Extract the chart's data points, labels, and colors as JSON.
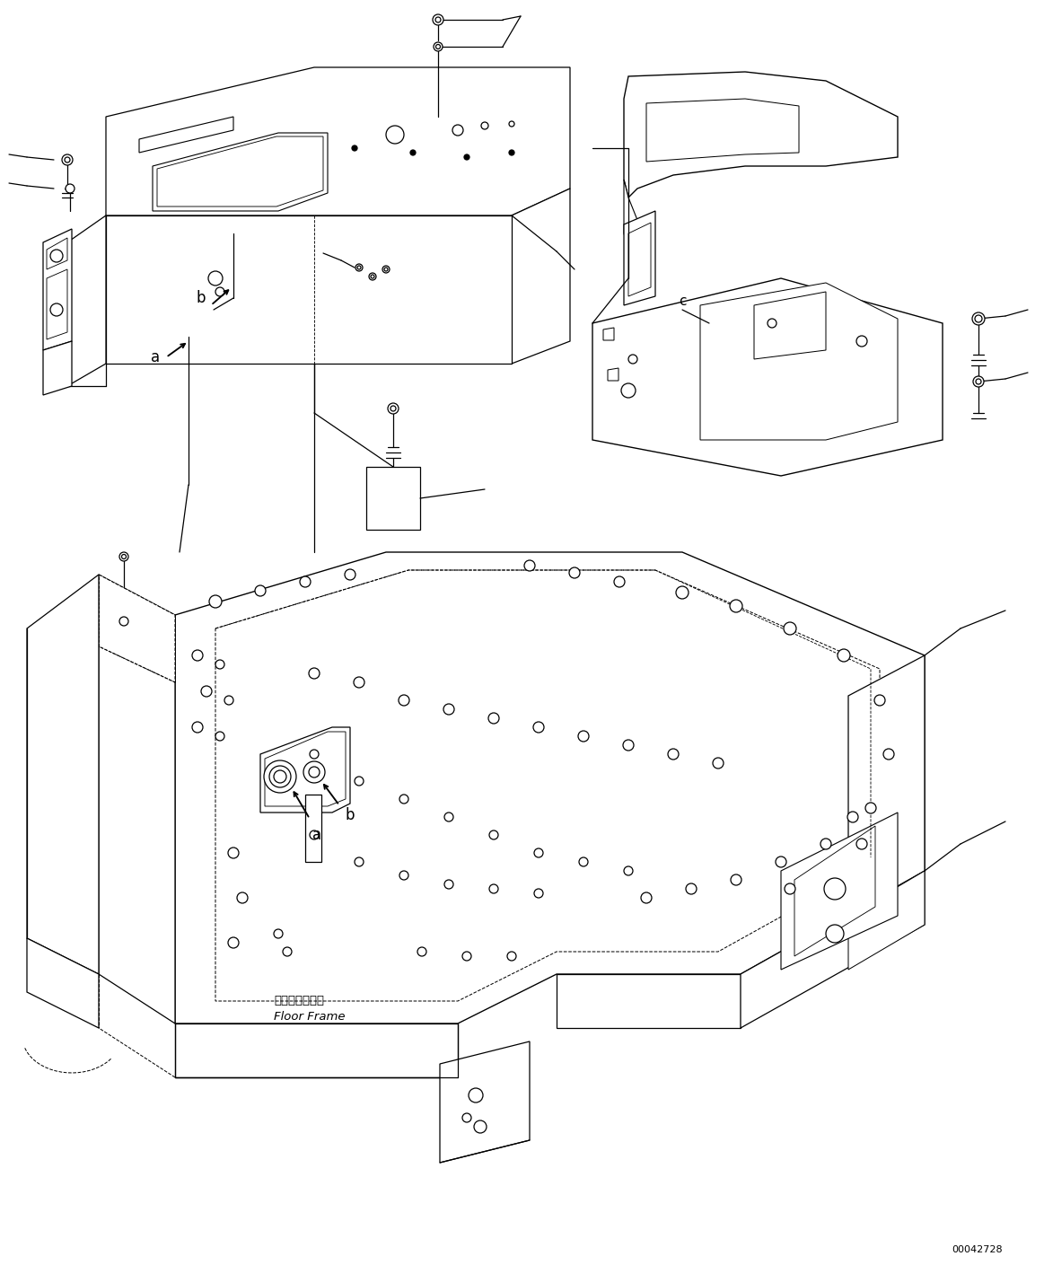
{
  "figure_width": 11.63,
  "figure_height": 14.09,
  "dpi": 100,
  "bg": "#ffffff",
  "lc": "#000000",
  "lw": 0.9,
  "part_number": "00042728",
  "label_jp": "フロアフレーム",
  "label_en": "Floor Frame"
}
